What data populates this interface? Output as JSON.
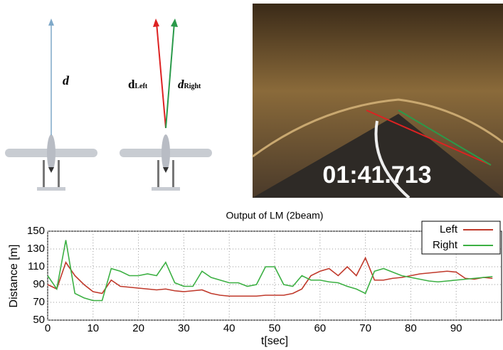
{
  "diagram": {
    "single": {
      "main": "d"
    },
    "left": {
      "main": "d",
      "sub": "Left"
    },
    "right": {
      "main": "d",
      "sub": "Right"
    }
  },
  "photo": {
    "timestamp": "01:41.713"
  },
  "chart_data": {
    "type": "line",
    "title": "Output of LM (2beam)",
    "xlabel": "t[sec]",
    "ylabel": "Distance [m]",
    "x": [
      0,
      2,
      4,
      6,
      8,
      10,
      12,
      14,
      16,
      18,
      20,
      22,
      24,
      26,
      28,
      30,
      32,
      34,
      36,
      38,
      40,
      42,
      44,
      46,
      48,
      50,
      52,
      54,
      56,
      58,
      60,
      62,
      64,
      66,
      68,
      70,
      72,
      74,
      76,
      78,
      80,
      82,
      84,
      86,
      88,
      90,
      92,
      94,
      96,
      98
    ],
    "series": [
      {
        "name": "Left",
        "color": "#c0392b",
        "values": [
          90,
          85,
          115,
          100,
          90,
          82,
          80,
          95,
          88,
          87,
          86,
          85,
          84,
          85,
          83,
          82,
          83,
          84,
          80,
          78,
          77,
          77,
          77,
          77,
          78,
          78,
          78,
          80,
          85,
          100,
          105,
          108,
          100,
          110,
          100,
          120,
          95,
          95,
          97,
          98,
          100,
          102,
          103,
          104,
          105,
          104,
          97,
          96,
          98,
          97
        ]
      },
      {
        "name": "Right",
        "color": "#3cb043",
        "values": [
          100,
          85,
          140,
          80,
          75,
          72,
          72,
          108,
          105,
          100,
          100,
          102,
          100,
          115,
          92,
          88,
          88,
          105,
          98,
          95,
          92,
          92,
          88,
          90,
          110,
          110,
          90,
          88,
          100,
          95,
          95,
          93,
          92,
          88,
          85,
          80,
          105,
          108,
          104,
          100,
          98,
          96,
          94,
          93,
          94,
          95,
          96,
          97,
          98,
          99
        ]
      }
    ],
    "xlim": [
      0,
      100
    ],
    "xticks": [
      0,
      10,
      20,
      30,
      40,
      50,
      60,
      70,
      80,
      90
    ],
    "ylim": [
      50,
      150
    ],
    "yticks": [
      50,
      70,
      90,
      110,
      130,
      150
    ],
    "grid": true,
    "legend": "top-right"
  }
}
